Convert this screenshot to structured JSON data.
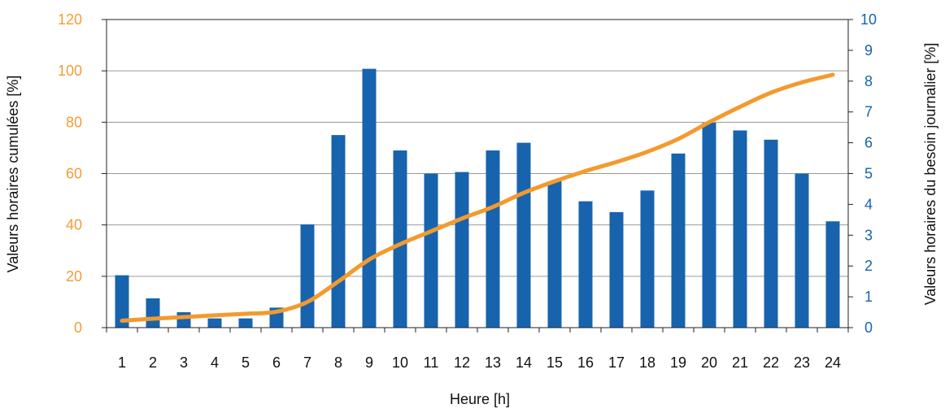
{
  "chart_data": {
    "type": "bar",
    "categories": [
      "1",
      "2",
      "3",
      "4",
      "5",
      "6",
      "7",
      "8",
      "9",
      "10",
      "11",
      "12",
      "13",
      "14",
      "15",
      "16",
      "17",
      "18",
      "19",
      "20",
      "21",
      "22",
      "23",
      "24"
    ],
    "series": [
      {
        "type": "bar",
        "axis": "right",
        "color": "#1763ae",
        "values": [
          1.7,
          0.95,
          0.5,
          0.3,
          0.3,
          0.65,
          3.35,
          6.25,
          8.4,
          5.75,
          5.0,
          5.05,
          5.75,
          6.0,
          4.75,
          4.1,
          3.75,
          4.45,
          5.65,
          6.65,
          6.4,
          6.1,
          5.0,
          3.45
        ]
      },
      {
        "type": "line",
        "axis": "left",
        "color": "#f39a2e",
        "values": [
          2.7,
          3.5,
          4.1,
          4.8,
          5.4,
          6.2,
          10.0,
          18.0,
          26.5,
          32.5,
          37.5,
          42.5,
          47.0,
          52.5,
          57.0,
          61.0,
          64.5,
          68.5,
          73.5,
          80.0,
          86.0,
          91.5,
          95.5,
          98.5
        ]
      }
    ],
    "xlabel": "Heure [h]",
    "ylabel": "Valeurs horaires cumulées [%]",
    "y2label": "Valeurs horaires du besoin journalier [%]",
    "ylim": [
      0,
      120
    ],
    "yticks": [
      "0",
      "20",
      "40",
      "60",
      "80",
      "100",
      "120"
    ],
    "y2lim": [
      0,
      10
    ],
    "y2ticks": [
      "0",
      "1",
      "2",
      "3",
      "4",
      "5",
      "6",
      "7",
      "8",
      "9",
      "10"
    ],
    "grid": true
  }
}
